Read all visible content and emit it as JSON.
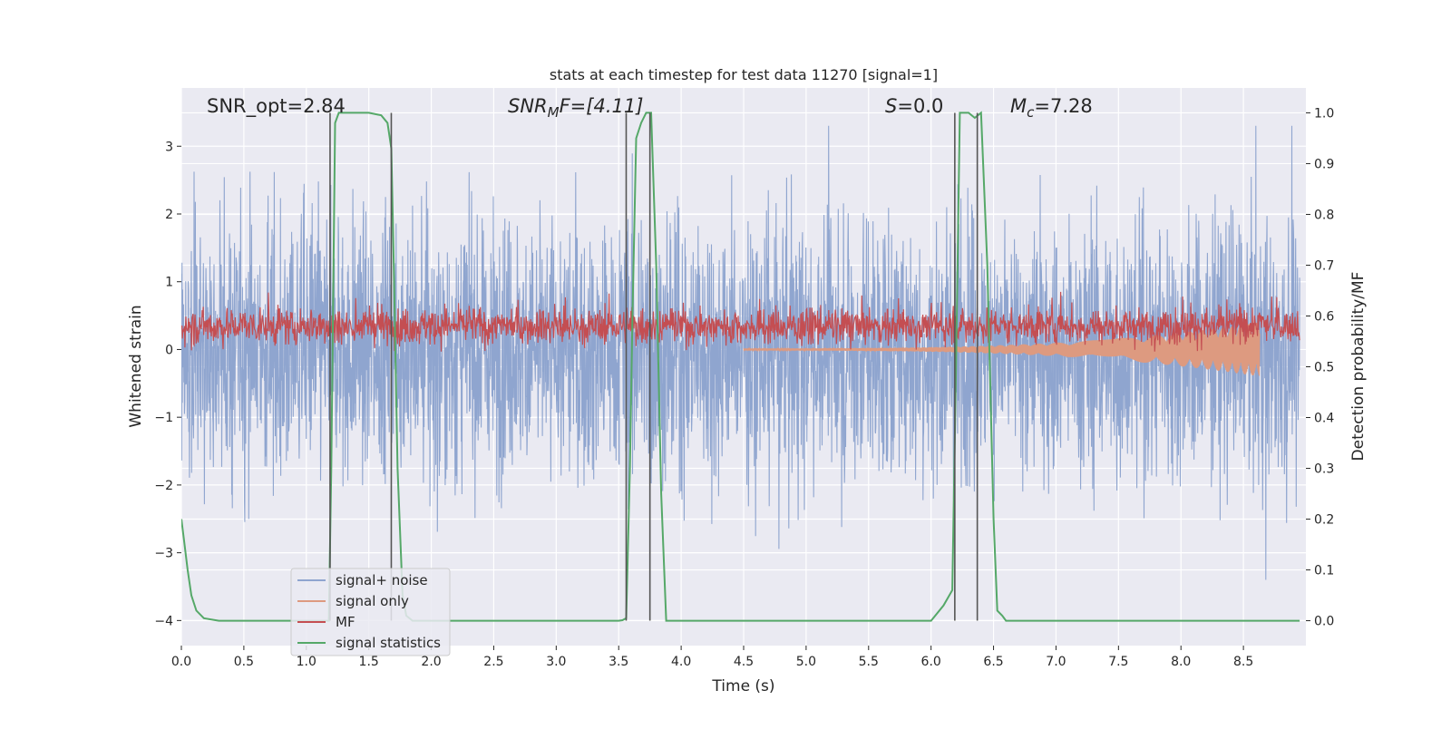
{
  "chart_data": {
    "type": "line",
    "title": "stats at each timestep for test data 11270 [signal=1]",
    "xlabel": "Time (s)",
    "ylabel_left": "Whitened strain",
    "ylabel_right": "Detection probability/MF",
    "xlim": [
      0.0,
      9.0
    ],
    "ylim_left": [
      -4.37,
      3.86
    ],
    "ylim_right": [
      -0.049,
      1.049
    ],
    "xticks": [
      "0.0",
      "0.5",
      "1.0",
      "1.5",
      "2.0",
      "2.5",
      "3.0",
      "3.5",
      "4.0",
      "4.5",
      "5.0",
      "5.5",
      "6.0",
      "6.5",
      "7.0",
      "7.5",
      "8.0",
      "8.5"
    ],
    "xtick_values": [
      0.0,
      0.5,
      1.0,
      1.5,
      2.0,
      2.5,
      3.0,
      3.5,
      4.0,
      4.5,
      5.0,
      5.5,
      6.0,
      6.5,
      7.0,
      7.5,
      8.0,
      8.5
    ],
    "yticks_left": [
      "−4",
      "−3",
      "−2",
      "−1",
      "0",
      "1",
      "2",
      "3"
    ],
    "ytick_values_left": [
      -4,
      -3,
      -2,
      -1,
      0,
      1,
      2,
      3
    ],
    "yticks_right": [
      "0.0",
      "0.1",
      "0.2",
      "0.3",
      "0.4",
      "0.5",
      "0.6",
      "0.7",
      "0.8",
      "0.9",
      "1.0"
    ],
    "ytick_values_right": [
      0.0,
      0.1,
      0.2,
      0.3,
      0.4,
      0.5,
      0.6,
      0.7,
      0.8,
      0.9,
      1.0
    ],
    "grid": true,
    "legend_position": "lower-left",
    "colors": {
      "signal_noise": "#8fa5cf",
      "signal_only": "#dd9a80",
      "mf": "#c44e52",
      "statistics": "#55a868",
      "vline": "#555555",
      "plot_bg": "#eaeaf2",
      "grid": "#ffffff"
    },
    "series": [
      {
        "name": "signal+ noise",
        "color": "#8fa5cf",
        "style": "dense noise",
        "x_range": [
          0.0,
          8.95
        ],
        "typical_envelope": [
          -1.8,
          1.8
        ],
        "extreme_range": [
          -3.4,
          3.3
        ]
      },
      {
        "name": "signal only",
        "color": "#dd9a80",
        "style": "chirp",
        "x_range": [
          4.5,
          8.63
        ],
        "peak_amplitude": 0.4
      },
      {
        "name": "MF",
        "color": "#c44e52",
        "axis": "right",
        "style": "noisy band",
        "x_range": [
          0.0,
          8.95
        ],
        "typical_range": [
          0.54,
          0.62
        ],
        "extreme_range": [
          0.53,
          0.67
        ]
      },
      {
        "name": "signal statistics",
        "color": "#55a868",
        "axis": "right",
        "x": [
          0.0,
          0.02,
          0.05,
          0.08,
          0.12,
          0.18,
          0.3,
          0.6,
          1.0,
          1.15,
          1.18,
          1.2,
          1.23,
          1.26,
          1.3,
          1.4,
          1.5,
          1.6,
          1.65,
          1.68,
          1.7,
          1.73,
          1.77,
          1.8,
          1.85,
          2.0,
          2.5,
          3.0,
          3.5,
          3.53,
          3.56,
          3.59,
          3.61,
          3.64,
          3.68,
          3.72,
          3.76,
          3.8,
          3.84,
          3.88,
          4.0,
          4.5,
          5.0,
          5.5,
          6.0,
          6.1,
          6.17,
          6.2,
          6.23,
          6.26,
          6.3,
          6.35,
          6.4,
          6.45,
          6.5,
          6.53,
          6.57,
          6.6,
          7.0,
          7.5,
          8.0,
          8.5,
          8.95
        ],
        "y": [
          0.2,
          0.16,
          0.1,
          0.05,
          0.02,
          0.005,
          0.0,
          0.0,
          0.0,
          0.0,
          0.0,
          0.3,
          0.98,
          1.0,
          1.0,
          1.0,
          1.0,
          0.995,
          0.98,
          0.93,
          0.7,
          0.3,
          0.05,
          0.01,
          0.0,
          0.0,
          0.0,
          0.0,
          0.0,
          0.001,
          0.005,
          0.3,
          0.6,
          0.95,
          0.98,
          1.0,
          1.0,
          0.7,
          0.25,
          0.0,
          0.0,
          0.0,
          0.0,
          0.0,
          0.0,
          0.03,
          0.06,
          0.5,
          1.0,
          1.0,
          1.0,
          0.99,
          1.0,
          0.7,
          0.2,
          0.02,
          0.01,
          0.0,
          0.0,
          0.0,
          0.0,
          0.0,
          0.0
        ]
      }
    ],
    "vertical_lines_x": [
      1.19,
      1.68,
      3.56,
      3.75,
      6.19,
      6.37
    ],
    "annotations": [
      {
        "name": "snr-opt",
        "text": "SNR_opt=2.84",
        "x": 0.2
      },
      {
        "name": "snr-mf",
        "text": "SNR_MF=[4.11]",
        "x": 2.6
      },
      {
        "name": "s-value",
        "text": "S=0.0",
        "x": 5.6
      },
      {
        "name": "chirp-mass",
        "text": "M_c=7.28",
        "x": 6.6
      }
    ],
    "annotation_parts": {
      "snr_opt": "SNR_opt=2.84",
      "snr_mf_base": "SNR",
      "snr_mf_sub": "M",
      "snr_mf_tail": "F=[4.11]",
      "s_var": "S",
      "s_val": "=0.0",
      "mc_base": "M",
      "mc_sub": "c",
      "mc_val": "=7.28"
    }
  }
}
